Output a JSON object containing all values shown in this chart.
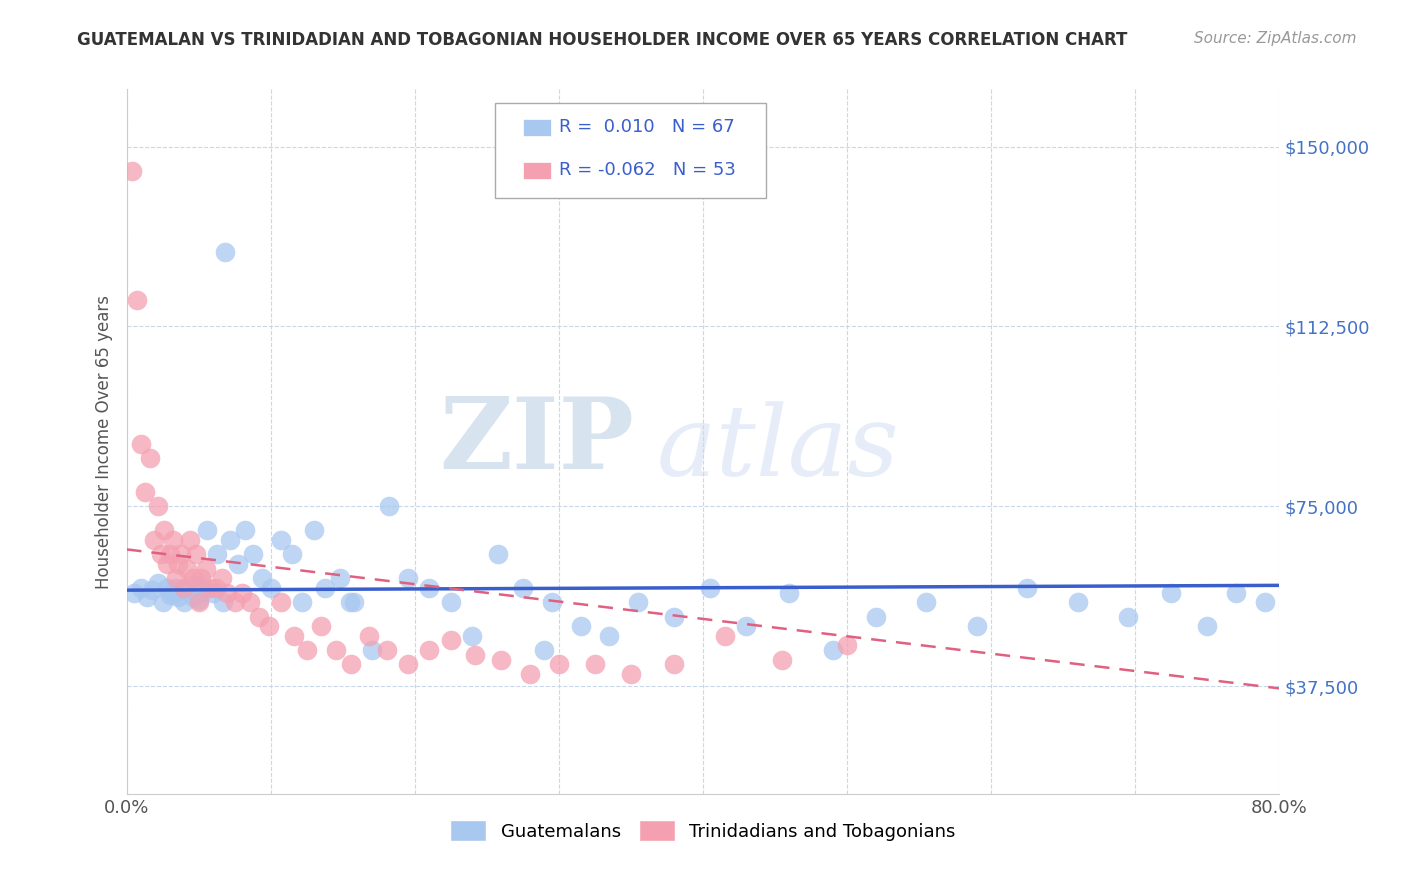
{
  "title": "GUATEMALAN VS TRINIDADIAN AND TOBAGONIAN HOUSEHOLDER INCOME OVER 65 YEARS CORRELATION CHART",
  "source": "Source: ZipAtlas.com",
  "ylabel": "Householder Income Over 65 years",
  "xlim": [
    0.0,
    0.8
  ],
  "ylim": [
    15000,
    162000
  ],
  "yticks": [
    37500,
    75000,
    112500,
    150000
  ],
  "ytick_labels": [
    "$37,500",
    "$75,000",
    "$112,500",
    "$150,000"
  ],
  "xticks": [
    0.0,
    0.1,
    0.2,
    0.3,
    0.4,
    0.5,
    0.6,
    0.7,
    0.8
  ],
  "xtick_labels": [
    "0.0%",
    "",
    "",
    "",
    "",
    "",
    "",
    "",
    "80.0%"
  ],
  "guatemalan_color": "#a8c8f0",
  "trinidadian_color": "#f4a0b0",
  "guatemalan_line_color": "#3a5fcd",
  "trinidadian_line_color": "#e06080",
  "R_guatemalan": 0.01,
  "N_guatemalan": 67,
  "R_trinidadian": -0.062,
  "N_trinidadian": 53,
  "legend_label_guatemalan": "Guatemalans",
  "legend_label_trinidadian": "Trinidadians and Tobagonians",
  "watermark_zip": "ZIP",
  "watermark_atlas": "atlas",
  "background_color": "#ffffff",
  "grid_color": "#c8d8e8",
  "guatemalan_x": [
    0.005,
    0.01,
    0.014,
    0.018,
    0.022,
    0.025,
    0.028,
    0.03,
    0.032,
    0.034,
    0.036,
    0.038,
    0.04,
    0.042,
    0.044,
    0.046,
    0.048,
    0.05,
    0.052,
    0.054,
    0.056,
    0.06,
    0.063,
    0.067,
    0.072,
    0.077,
    0.082,
    0.088,
    0.094,
    0.1,
    0.107,
    0.115,
    0.122,
    0.13,
    0.138,
    0.148,
    0.158,
    0.17,
    0.182,
    0.195,
    0.21,
    0.225,
    0.24,
    0.258,
    0.275,
    0.295,
    0.315,
    0.335,
    0.355,
    0.38,
    0.405,
    0.43,
    0.46,
    0.49,
    0.52,
    0.555,
    0.59,
    0.625,
    0.66,
    0.695,
    0.725,
    0.75,
    0.77,
    0.79,
    0.068,
    0.155,
    0.29
  ],
  "guatemalan_y": [
    57000,
    58000,
    56000,
    57500,
    59000,
    55000,
    58000,
    56500,
    57000,
    58000,
    56000,
    57500,
    55000,
    58000,
    57000,
    56000,
    58500,
    55500,
    57000,
    58000,
    70000,
    57000,
    65000,
    55000,
    68000,
    63000,
    70000,
    65000,
    60000,
    58000,
    68000,
    65000,
    55000,
    70000,
    58000,
    60000,
    55000,
    45000,
    75000,
    60000,
    58000,
    55000,
    48000,
    65000,
    58000,
    55000,
    50000,
    48000,
    55000,
    52000,
    58000,
    50000,
    57000,
    45000,
    52000,
    55000,
    50000,
    58000,
    55000,
    52000,
    57000,
    50000,
    57000,
    55000,
    128000,
    55000,
    45000
  ],
  "trinidadian_x": [
    0.004,
    0.007,
    0.01,
    0.013,
    0.016,
    0.019,
    0.022,
    0.024,
    0.026,
    0.028,
    0.03,
    0.032,
    0.034,
    0.036,
    0.038,
    0.04,
    0.042,
    0.044,
    0.046,
    0.048,
    0.05,
    0.052,
    0.055,
    0.058,
    0.062,
    0.066,
    0.07,
    0.075,
    0.08,
    0.086,
    0.092,
    0.099,
    0.107,
    0.116,
    0.125,
    0.135,
    0.145,
    0.156,
    0.168,
    0.181,
    0.195,
    0.21,
    0.225,
    0.242,
    0.26,
    0.28,
    0.3,
    0.325,
    0.35,
    0.38,
    0.415,
    0.455,
    0.5
  ],
  "trinidadian_y": [
    145000,
    118000,
    88000,
    78000,
    85000,
    68000,
    75000,
    65000,
    70000,
    63000,
    65000,
    68000,
    60000,
    63000,
    65000,
    58000,
    62000,
    68000,
    60000,
    65000,
    55000,
    60000,
    62000,
    58000,
    58000,
    60000,
    57000,
    55000,
    57000,
    55000,
    52000,
    50000,
    55000,
    48000,
    45000,
    50000,
    45000,
    42000,
    48000,
    45000,
    42000,
    45000,
    47000,
    44000,
    43000,
    40000,
    42000,
    42000,
    40000,
    42000,
    48000,
    43000,
    46000
  ]
}
